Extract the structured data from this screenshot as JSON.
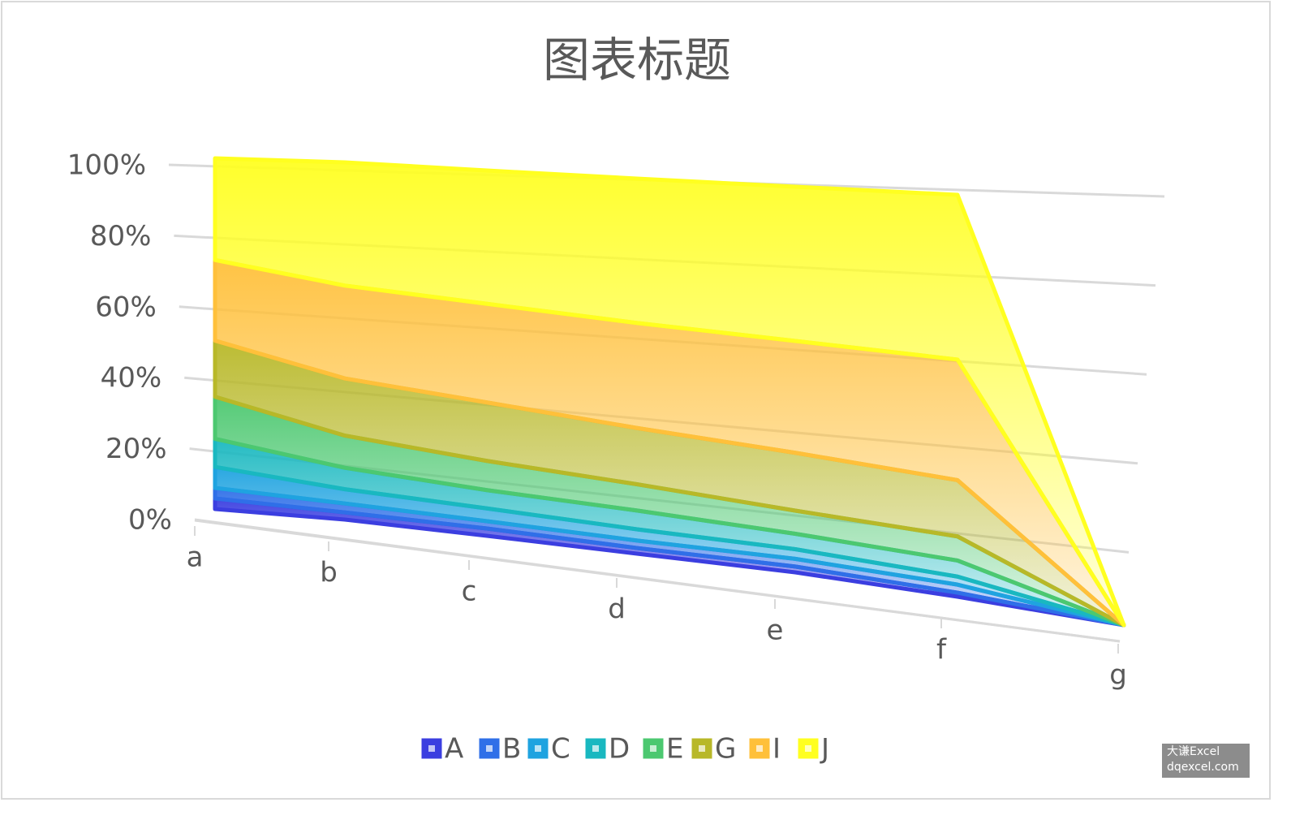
{
  "chart_data": {
    "type": "area",
    "stacking": "percent",
    "title": "图表标题",
    "categories": [
      "a",
      "b",
      "c",
      "d",
      "e",
      "f",
      "g"
    ],
    "series": [
      {
        "name": "A",
        "color": "#3b3ee0",
        "values": [
          3,
          2,
          2,
          1.5,
          1.5,
          1,
          0
        ]
      },
      {
        "name": "B",
        "color": "#2f6fe8",
        "values": [
          3,
          2.5,
          2,
          2,
          2,
          2,
          0
        ]
      },
      {
        "name": "C",
        "color": "#1fa3e0",
        "values": [
          6,
          4,
          3.5,
          3,
          2.5,
          2,
          0
        ]
      },
      {
        "name": "D",
        "color": "#19b8c0",
        "values": [
          8,
          6,
          5,
          5,
          4,
          4,
          0
        ]
      },
      {
        "name": "E",
        "color": "#4cc870",
        "values": [
          12,
          9,
          8,
          7,
          6,
          6,
          0
        ]
      },
      {
        "name": "G",
        "color": "#b8b828",
        "values": [
          16,
          16,
          16,
          15,
          15,
          14,
          0
        ]
      },
      {
        "name": "I",
        "color": "#ffc03a",
        "values": [
          23,
          26,
          27,
          28,
          29,
          30,
          0
        ]
      },
      {
        "name": "J",
        "color": "#ffff20",
        "values": [
          29,
          34.5,
          36.5,
          38.5,
          40,
          41,
          0
        ]
      }
    ],
    "ylim": [
      0,
      100
    ],
    "yticks": [
      {
        "value": 0,
        "label": "0%"
      },
      {
        "value": 20,
        "label": "20%"
      },
      {
        "value": 40,
        "label": "40%"
      },
      {
        "value": 60,
        "label": "60%"
      },
      {
        "value": 80,
        "label": "80%"
      },
      {
        "value": 100,
        "label": "100%"
      }
    ],
    "grid": true,
    "legend": "bottom",
    "watermark": [
      "大谦Excel",
      "dqexcel.com"
    ]
  }
}
